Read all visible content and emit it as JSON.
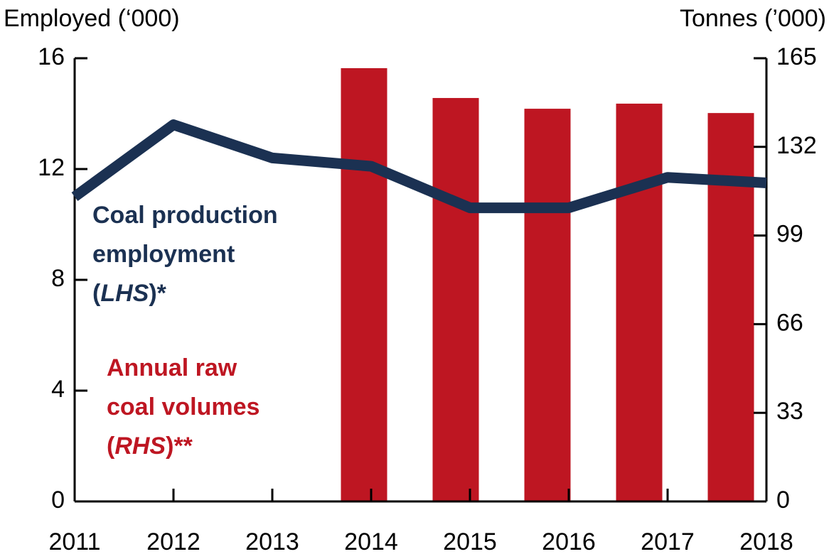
{
  "chart_data": {
    "type": "bar_line",
    "y_label": "Employed (‘000)",
    "y2_label": "Tonnes (’000)",
    "categories": [
      "2011",
      "2012",
      "2013",
      "2014",
      "2015",
      "2016",
      "2017",
      "2018"
    ],
    "ylim": [
      0,
      16
    ],
    "yticks": [
      0,
      4,
      8,
      12,
      16
    ],
    "y2lim": [
      0,
      165
    ],
    "y2ticks": [
      0,
      33,
      66,
      99,
      132,
      165
    ],
    "series": [
      {
        "type": "line",
        "axis": "y",
        "color": "#1b3152",
        "label": [
          [
            {
              "text": "Coal production"
            }
          ],
          [
            {
              "text": "employment"
            }
          ],
          [
            {
              "text": "("
            },
            {
              "text": "LHS",
              "italic": true
            },
            {
              "text": ")*"
            }
          ]
        ],
        "values": [
          11.0,
          13.6,
          12.4,
          12.1,
          10.6,
          10.6,
          11.7,
          11.5
        ]
      },
      {
        "type": "bar",
        "axis": "y2",
        "color": "#be1622",
        "label": [
          [
            {
              "text": "Annual raw"
            }
          ],
          [
            {
              "text": "coal volumes"
            }
          ],
          [
            {
              "text": "("
            },
            {
              "text": "RHS",
              "italic": true
            },
            {
              "text": ")**"
            }
          ]
        ],
        "values": [
          null,
          null,
          null,
          161.3,
          150.2,
          146.2,
          148.1,
          144.6
        ]
      }
    ]
  }
}
